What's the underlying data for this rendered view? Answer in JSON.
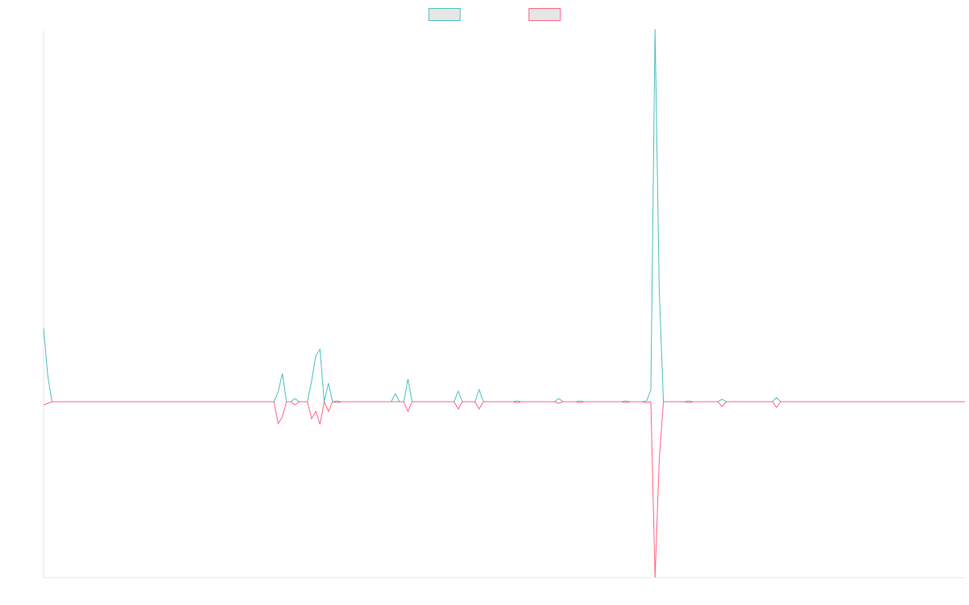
{
  "chart_data": {
    "type": "line",
    "x": [
      0,
      1,
      2,
      55,
      56,
      57,
      58,
      59,
      60,
      61,
      63,
      64,
      65,
      66,
      67,
      68,
      69,
      70,
      71,
      83,
      84,
      85,
      86,
      87,
      88,
      98,
      99,
      100,
      103,
      104,
      105,
      112,
      113,
      114,
      122,
      123,
      124,
      127,
      128,
      129,
      138,
      139,
      140,
      143,
      144,
      145,
      146,
      147,
      148,
      153,
      154,
      155,
      161,
      162,
      163,
      174,
      175,
      176,
      220
    ],
    "series": [
      {
        "color": "#4bc0c0",
        "values": [
          0.91,
          0.32,
          0,
          0,
          0.12,
          0.35,
          0,
          0,
          0.04,
          0,
          0,
          0.26,
          0.57,
          0.65,
          0,
          0.23,
          0,
          0.01,
          0,
          0,
          0.1,
          0,
          0,
          0.28,
          0,
          0,
          0.13,
          0,
          0,
          0.15,
          0,
          0,
          0.01,
          0,
          0,
          0.04,
          0,
          0,
          0.01,
          0,
          0,
          0.01,
          0,
          0,
          0.01,
          0.15,
          4.62,
          1.38,
          0,
          0,
          0.01,
          0,
          0,
          0.03,
          0,
          0,
          0.05,
          0,
          0
        ]
      },
      {
        "color": "#ff6384",
        "values": [
          -0.04,
          -0.02,
          0,
          0,
          -0.27,
          -0.19,
          0,
          0,
          -0.04,
          0,
          0,
          -0.21,
          -0.12,
          -0.28,
          0,
          -0.12,
          0,
          -0.01,
          0,
          0,
          0,
          0,
          0,
          -0.12,
          0,
          0,
          -0.09,
          0,
          0,
          -0.09,
          0,
          0,
          -0.01,
          0,
          0,
          -0.02,
          0,
          0,
          -0.01,
          0,
          0,
          -0.01,
          0,
          0,
          -0.01,
          0,
          -2.18,
          -0.72,
          0,
          0,
          -0.01,
          0,
          0,
          -0.06,
          0,
          0,
          -0.07,
          0,
          0
        ]
      }
    ],
    "xlim": [
      0,
      220
    ],
    "ylim": [
      -2.18,
      4.62
    ],
    "legend": "top"
  }
}
